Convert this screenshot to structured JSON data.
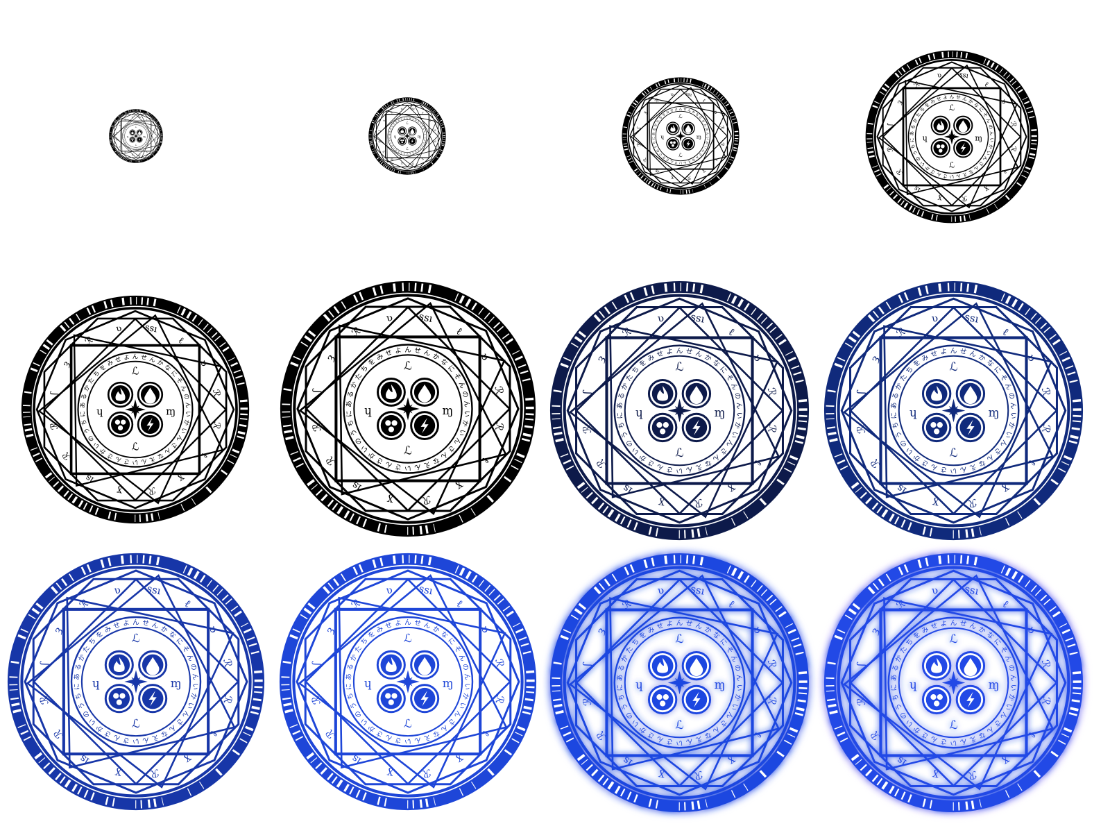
{
  "sheet": {
    "background": "#ffffff",
    "rows": 3,
    "columns": 4
  },
  "glyph_set": {
    "outer_runes": [
      "ssı",
      "ℓ",
      "ʋ",
      "ℛ",
      "ℛ",
      "ℓ",
      "ɣ",
      "ℛ",
      "ɣ",
      "ıs",
      "ℛ",
      "ℛ",
      "ʃ",
      "ȝ",
      "ℛ",
      "ʋ"
    ],
    "inner_ring_text": "んせんかなにそんのんいかいんさんなえんいさんさかいのうちにあるかたちをみせよ",
    "core_glyphs": [
      "ℒ",
      "ɱ",
      "ℒ",
      "ɥ"
    ],
    "element_icons": [
      "fire-icon",
      "water-drop-icon",
      "earth-icon",
      "lightning-icon"
    ],
    "center_icon": "compass-star-icon"
  },
  "variants": [
    {
      "id": "size-1",
      "color": "#000000",
      "glow": false
    },
    {
      "id": "size-2",
      "color": "#000000",
      "glow": false
    },
    {
      "id": "size-3",
      "color": "#000000",
      "glow": false
    },
    {
      "id": "size-4",
      "color": "#000000",
      "glow": false
    },
    {
      "id": "full-black-a",
      "color": "#000000",
      "glow": false
    },
    {
      "id": "full-black-b",
      "color": "#000000",
      "glow": false
    },
    {
      "id": "navy-dark",
      "color": "#0d1a4a",
      "glow": false
    },
    {
      "id": "navy",
      "color": "#102a7c",
      "glow": false
    },
    {
      "id": "royal-blue",
      "color": "#1736a8",
      "glow": false
    },
    {
      "id": "bright-blue",
      "color": "#1e46d8",
      "glow": false
    },
    {
      "id": "glow-blue",
      "color": "#1f47e0",
      "glow": true,
      "glow_color": "#8da6ff"
    },
    {
      "id": "glow-violet",
      "color": "#2248e6",
      "glow": true,
      "glow_color": "#cda8ff"
    }
  ]
}
